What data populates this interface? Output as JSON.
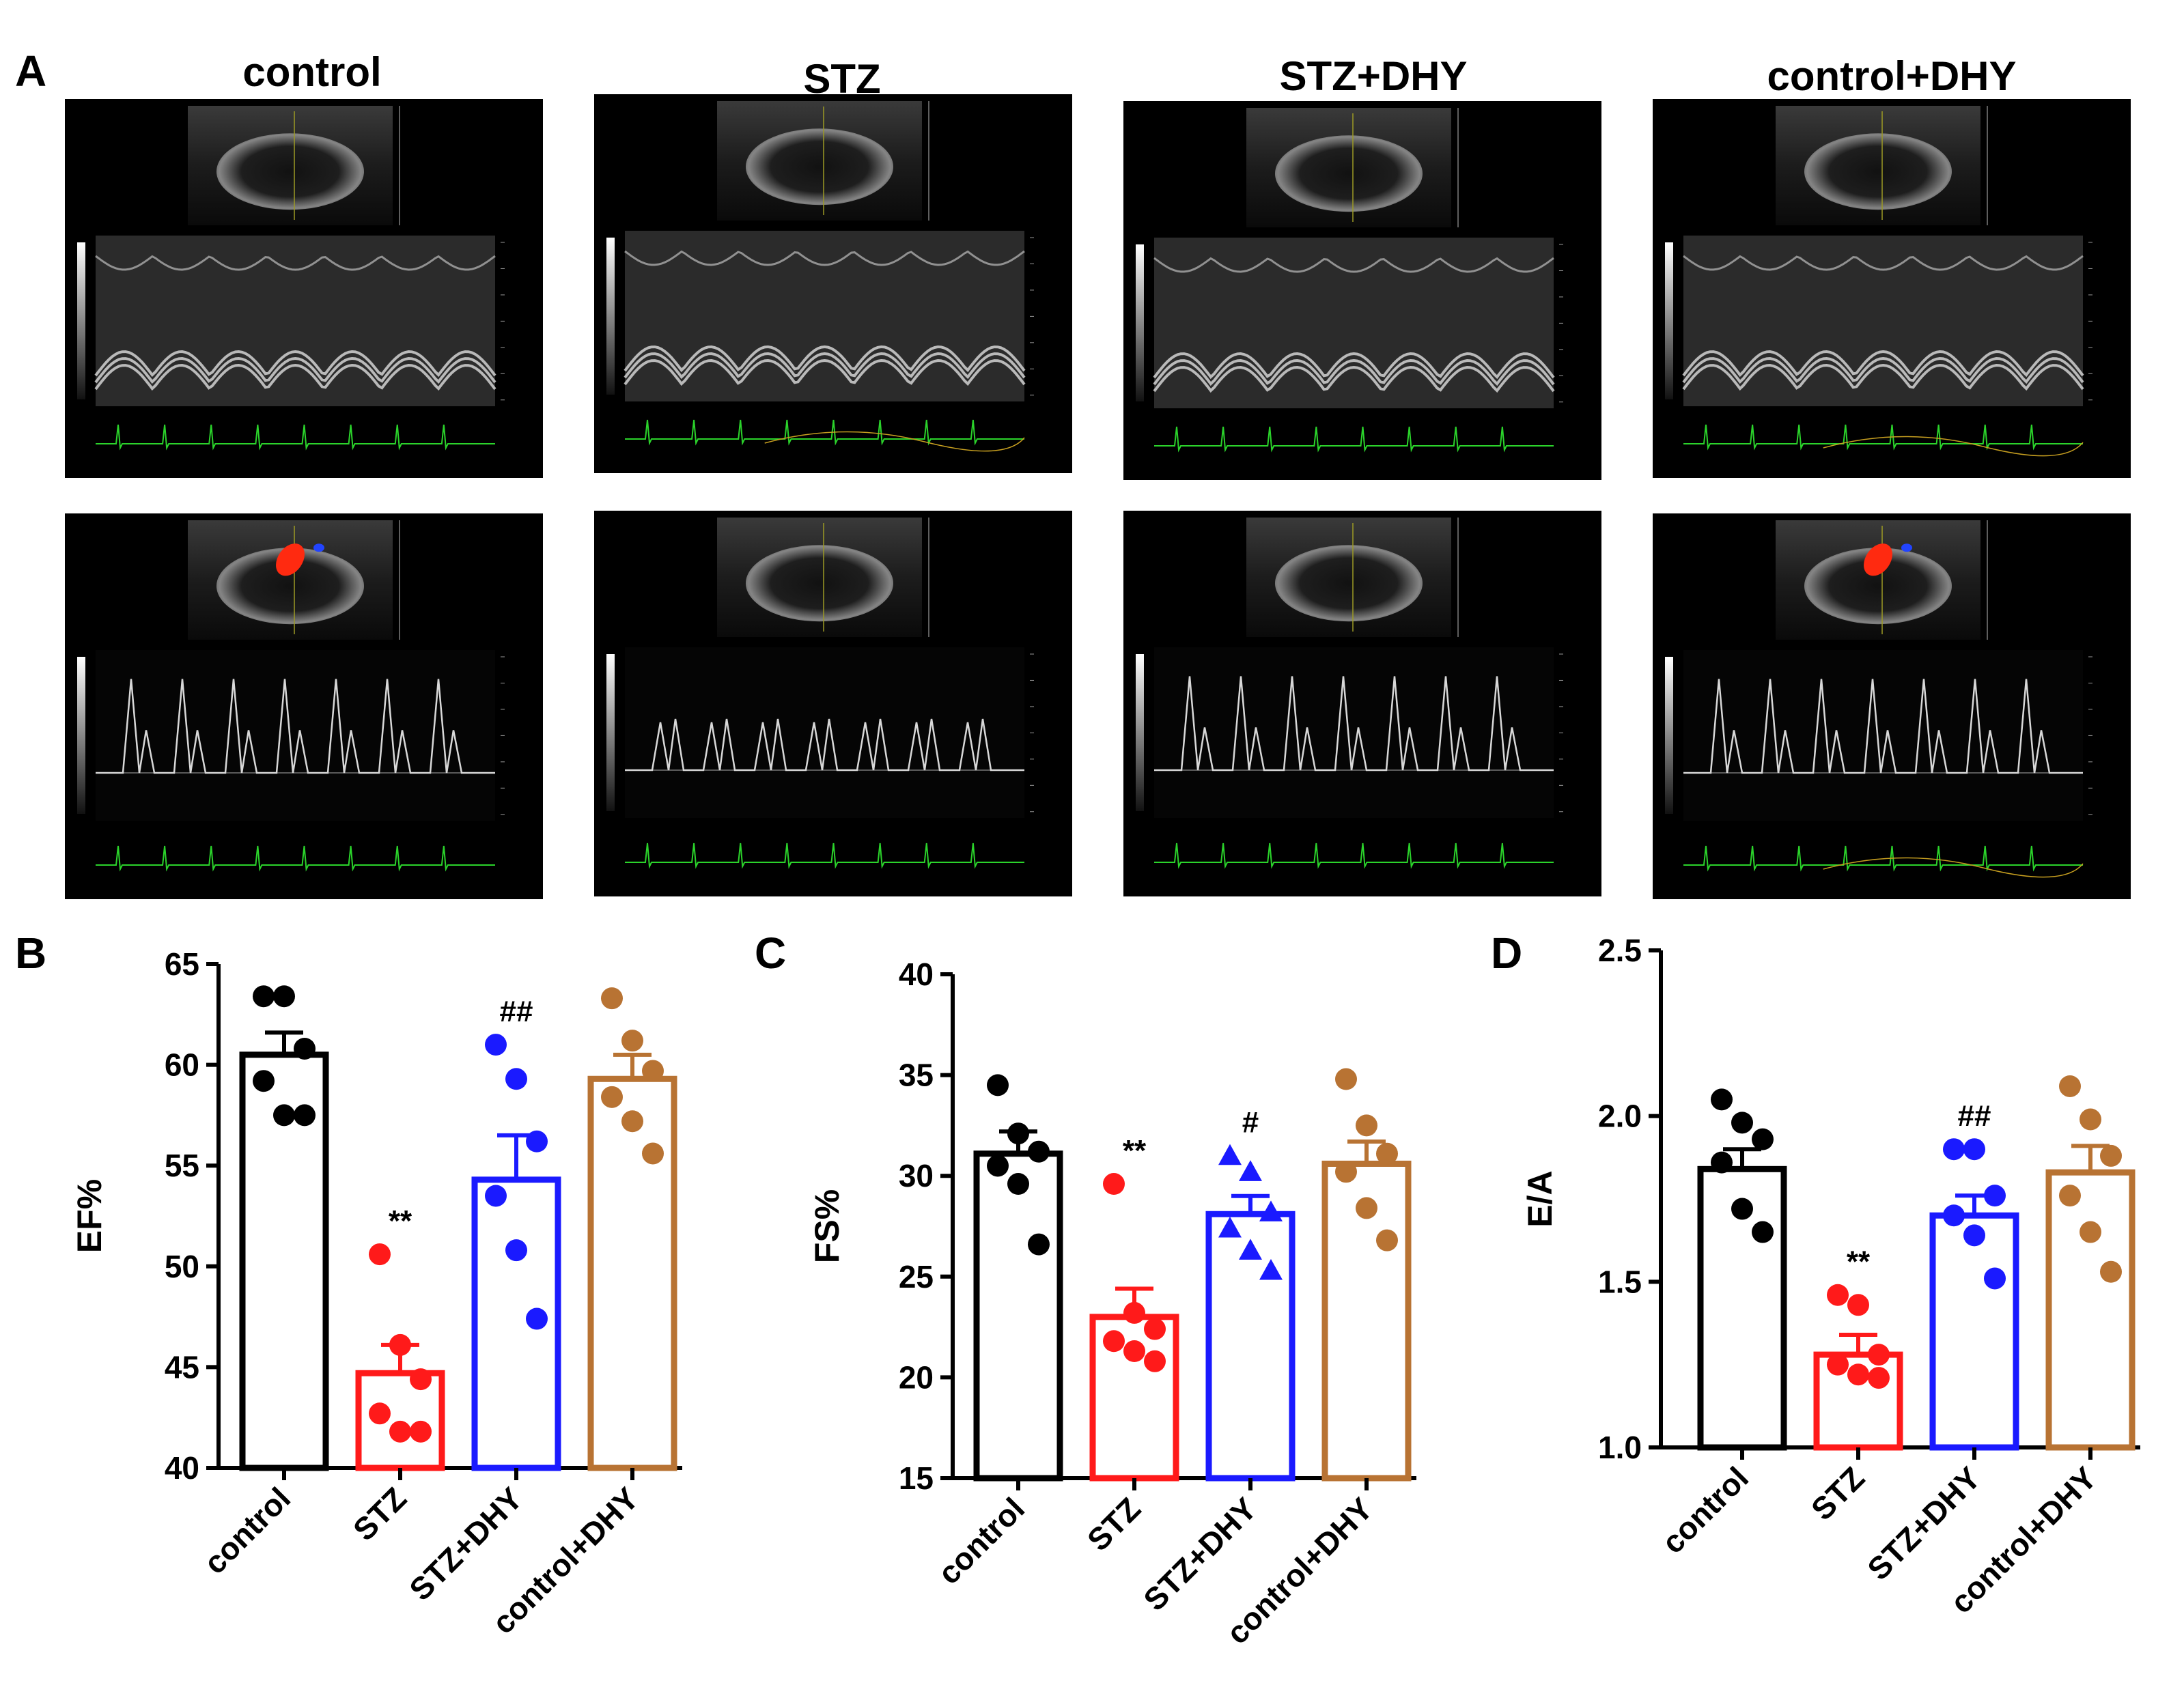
{
  "panel_a": {
    "letter": "A",
    "columns": [
      "control",
      "STZ",
      "STZ+DHY",
      "control+DHY"
    ]
  },
  "colors": {
    "control": "#000000",
    "STZ": "#ff1a1a",
    "STZ+DHY": "#1a1aff",
    "control+DHY": "#b87333",
    "ecg": "#2bd32b",
    "doppler_red": "#ff2a10",
    "doppler_blue": "#2244ff"
  },
  "chart_data": [
    {
      "panel": "B",
      "type": "bar",
      "ylabel": "EF%",
      "ylim": [
        40,
        65
      ],
      "yticks": [
        "40",
        "45",
        "50",
        "55",
        "60",
        "65"
      ],
      "categories": [
        "control",
        "STZ",
        "STZ+DHY",
        "control+DHY"
      ],
      "series": [
        {
          "name": "control",
          "mean": 60.5,
          "sem": 1.1,
          "points": [
            63.4,
            63.4,
            60.8,
            59.2,
            57.5,
            57.5
          ],
          "marker": "circle",
          "annotation": ""
        },
        {
          "name": "STZ",
          "mean": 44.7,
          "sem": 1.4,
          "points": [
            50.6,
            46.1,
            44.4,
            42.7,
            41.8,
            41.8
          ],
          "marker": "circle",
          "annotation": "**"
        },
        {
          "name": "STZ+DHY",
          "mean": 54.3,
          "sem": 2.2,
          "points": [
            61.0,
            59.3,
            56.2,
            53.5,
            50.8,
            47.4
          ],
          "marker": "circle",
          "annotation": "##"
        },
        {
          "name": "control+DHY",
          "mean": 59.3,
          "sem": 1.2,
          "points": [
            63.3,
            61.2,
            59.7,
            58.4,
            57.2,
            55.6
          ],
          "marker": "circle",
          "annotation": ""
        }
      ]
    },
    {
      "panel": "C",
      "type": "bar",
      "ylabel": "FS%",
      "ylim": [
        15,
        40
      ],
      "yticks": [
        "15",
        "20",
        "25",
        "30",
        "35",
        "40"
      ],
      "categories": [
        "control",
        "STZ",
        "STZ+DHY",
        "control+DHY"
      ],
      "series": [
        {
          "name": "control",
          "mean": 31.1,
          "sem": 1.1,
          "points": [
            34.5,
            32.1,
            31.2,
            30.5,
            29.6,
            26.6
          ],
          "marker": "circle",
          "annotation": ""
        },
        {
          "name": "STZ",
          "mean": 23.0,
          "sem": 1.4,
          "points": [
            29.6,
            23.2,
            22.4,
            21.8,
            21.3,
            20.8
          ],
          "marker": "circle",
          "annotation": "**"
        },
        {
          "name": "STZ+DHY",
          "mean": 28.1,
          "sem": 0.9,
          "points": [
            31.0,
            30.2,
            28.2,
            27.4,
            26.3,
            25.3
          ],
          "marker": "triangle",
          "annotation": "#"
        },
        {
          "name": "control+DHY",
          "mean": 30.6,
          "sem": 1.1,
          "points": [
            34.8,
            32.5,
            31.1,
            30.2,
            28.4,
            26.8
          ],
          "marker": "circle",
          "annotation": ""
        }
      ]
    },
    {
      "panel": "D",
      "type": "bar",
      "ylabel": "E/A",
      "ylim": [
        1.0,
        2.5
      ],
      "yticks": [
        "1.0",
        "1.5",
        "2.0",
        "2.5"
      ],
      "categories": [
        "control",
        "STZ",
        "STZ+DHY",
        "control+DHY"
      ],
      "series": [
        {
          "name": "control",
          "mean": 1.84,
          "sem": 0.06,
          "points": [
            2.05,
            1.98,
            1.93,
            1.86,
            1.72,
            1.65
          ],
          "marker": "circle",
          "annotation": ""
        },
        {
          "name": "STZ",
          "mean": 1.28,
          "sem": 0.06,
          "points": [
            1.46,
            1.43,
            1.28,
            1.25,
            1.22,
            1.21
          ],
          "marker": "circle",
          "annotation": "**"
        },
        {
          "name": "STZ+DHY",
          "mean": 1.7,
          "sem": 0.06,
          "points": [
            1.9,
            1.9,
            1.76,
            1.7,
            1.64,
            1.51
          ],
          "marker": "circle",
          "annotation": "##"
        },
        {
          "name": "control+DHY",
          "mean": 1.83,
          "sem": 0.08,
          "points": [
            2.09,
            1.99,
            1.88,
            1.76,
            1.65,
            1.53
          ],
          "marker": "circle",
          "annotation": ""
        }
      ]
    }
  ]
}
